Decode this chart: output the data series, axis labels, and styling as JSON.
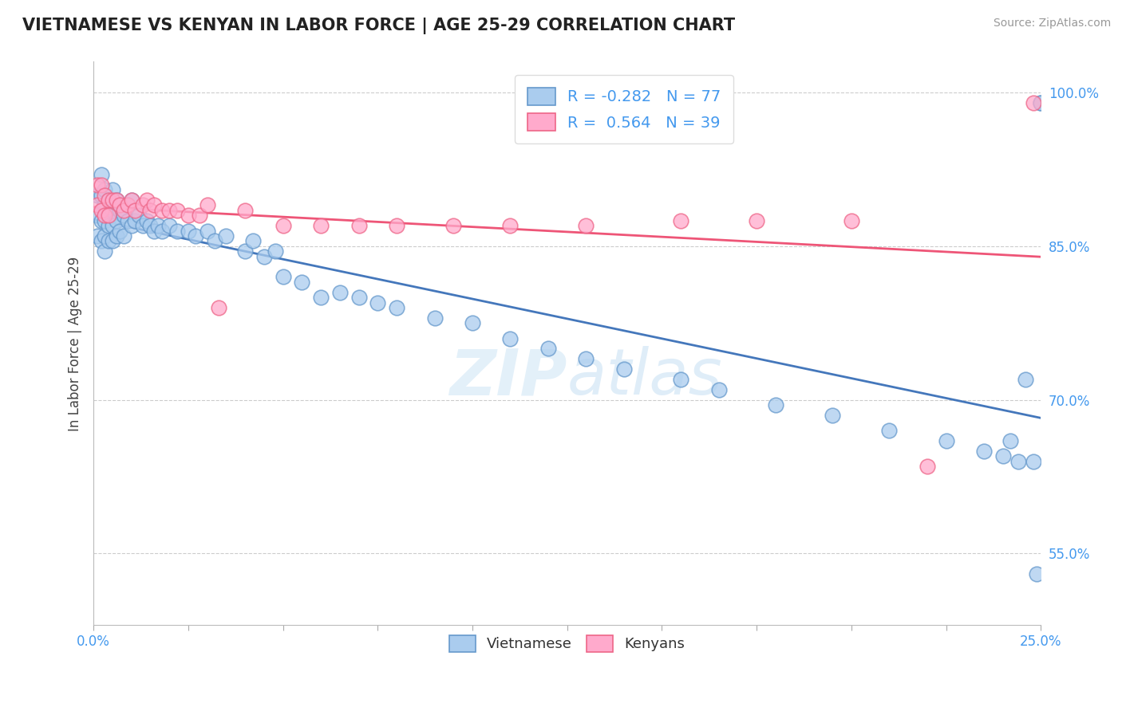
{
  "title": "VIETNAMESE VS KENYAN IN LABOR FORCE | AGE 25-29 CORRELATION CHART",
  "source": "Source: ZipAtlas.com",
  "ylabel": "In Labor Force | Age 25-29",
  "xlim": [
    0.0,
    0.25
  ],
  "ylim": [
    0.48,
    1.03
  ],
  "ytick_positions": [
    0.55,
    0.7,
    0.85,
    1.0
  ],
  "ytick_labels": [
    "55.0%",
    "70.0%",
    "85.0%",
    "100.0%"
  ],
  "xtick_positions": [
    0.0,
    0.025,
    0.05,
    0.075,
    0.1,
    0.125,
    0.15,
    0.175,
    0.2,
    0.225,
    0.25
  ],
  "xtick_show": [
    0.0,
    0.25
  ],
  "xtick_labels_show": [
    "0.0%",
    "25.0%"
  ],
  "grid_color": "#cccccc",
  "background_color": "#ffffff",
  "tick_color": "#4499ee",
  "viet_face_color": "#aaccee",
  "viet_edge_color": "#6699cc",
  "kenyan_face_color": "#ffaacc",
  "kenyan_edge_color": "#ee6688",
  "viet_line_color": "#4477bb",
  "kenyan_line_color": "#ee5577",
  "viet_R": -0.282,
  "viet_N": 77,
  "kenyan_R": 0.564,
  "kenyan_N": 39,
  "legend_label_viet": "Vietnamese",
  "legend_label_kenyan": "Kenyans",
  "watermark_zip": "ZIP",
  "watermark_atlas": "atlas",
  "viet_x": [
    0.001,
    0.001,
    0.001,
    0.002,
    0.002,
    0.002,
    0.002,
    0.003,
    0.003,
    0.003,
    0.003,
    0.003,
    0.004,
    0.004,
    0.004,
    0.004,
    0.005,
    0.005,
    0.005,
    0.005,
    0.006,
    0.006,
    0.006,
    0.007,
    0.007,
    0.008,
    0.008,
    0.009,
    0.01,
    0.01,
    0.011,
    0.012,
    0.013,
    0.014,
    0.015,
    0.016,
    0.017,
    0.018,
    0.02,
    0.022,
    0.025,
    0.027,
    0.03,
    0.032,
    0.035,
    0.04,
    0.042,
    0.045,
    0.048,
    0.05,
    0.055,
    0.06,
    0.065,
    0.07,
    0.075,
    0.08,
    0.09,
    0.1,
    0.11,
    0.12,
    0.13,
    0.14,
    0.155,
    0.165,
    0.18,
    0.195,
    0.21,
    0.225,
    0.235,
    0.24,
    0.242,
    0.244,
    0.246,
    0.248,
    0.249,
    0.25,
    0.25
  ],
  "viet_y": [
    0.9,
    0.88,
    0.86,
    0.92,
    0.9,
    0.875,
    0.855,
    0.905,
    0.89,
    0.875,
    0.86,
    0.845,
    0.895,
    0.88,
    0.87,
    0.855,
    0.905,
    0.885,
    0.87,
    0.855,
    0.895,
    0.875,
    0.86,
    0.885,
    0.865,
    0.88,
    0.86,
    0.875,
    0.895,
    0.87,
    0.875,
    0.88,
    0.87,
    0.875,
    0.87,
    0.865,
    0.87,
    0.865,
    0.87,
    0.865,
    0.865,
    0.86,
    0.865,
    0.855,
    0.86,
    0.845,
    0.855,
    0.84,
    0.845,
    0.82,
    0.815,
    0.8,
    0.805,
    0.8,
    0.795,
    0.79,
    0.78,
    0.775,
    0.76,
    0.75,
    0.74,
    0.73,
    0.72,
    0.71,
    0.695,
    0.685,
    0.67,
    0.66,
    0.65,
    0.645,
    0.66,
    0.64,
    0.72,
    0.64,
    0.53,
    0.99,
    0.99
  ],
  "kenyan_x": [
    0.001,
    0.001,
    0.002,
    0.002,
    0.003,
    0.003,
    0.004,
    0.004,
    0.005,
    0.006,
    0.007,
    0.008,
    0.009,
    0.01,
    0.011,
    0.013,
    0.014,
    0.015,
    0.016,
    0.018,
    0.02,
    0.022,
    0.025,
    0.028,
    0.03,
    0.033,
    0.04,
    0.05,
    0.06,
    0.07,
    0.08,
    0.095,
    0.11,
    0.13,
    0.155,
    0.175,
    0.2,
    0.22,
    0.248
  ],
  "kenyan_y": [
    0.91,
    0.89,
    0.91,
    0.885,
    0.9,
    0.88,
    0.895,
    0.88,
    0.895,
    0.895,
    0.89,
    0.885,
    0.89,
    0.895,
    0.885,
    0.89,
    0.895,
    0.885,
    0.89,
    0.885,
    0.885,
    0.885,
    0.88,
    0.88,
    0.89,
    0.79,
    0.885,
    0.87,
    0.87,
    0.87,
    0.87,
    0.87,
    0.87,
    0.87,
    0.875,
    0.875,
    0.875,
    0.635,
    0.99
  ]
}
